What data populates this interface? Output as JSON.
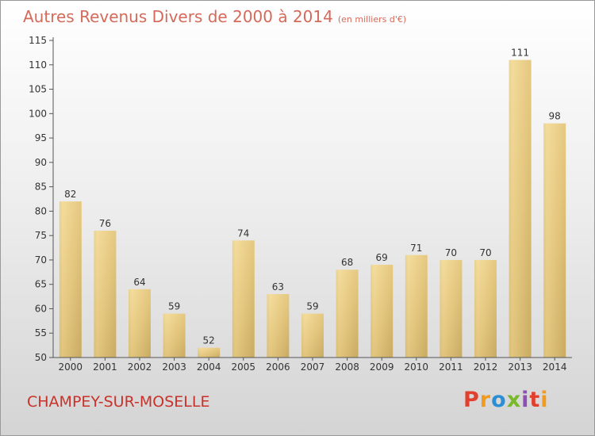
{
  "chart_data": {
    "type": "bar",
    "title": "Autres Revenus Divers de 2000 à 2014",
    "subtitle": "(en milliers d'€)",
    "categories": [
      "2000",
      "2001",
      "2002",
      "2003",
      "2004",
      "2005",
      "2006",
      "2007",
      "2008",
      "2009",
      "2010",
      "2011",
      "2012",
      "2013",
      "2014"
    ],
    "values": [
      82,
      76,
      64,
      59,
      52,
      74,
      63,
      59,
      68,
      69,
      71,
      70,
      70,
      111,
      98
    ],
    "ylim": [
      50,
      115
    ],
    "yticks": [
      50,
      55,
      60,
      65,
      70,
      75,
      80,
      85,
      90,
      95,
      100,
      105,
      110,
      115
    ],
    "xlabel": "",
    "ylabel": "",
    "grid": false,
    "bar_color": "#e8cc85"
  },
  "footer": {
    "location": "CHAMPEY-SUR-MOSELLE",
    "brand": "Proxiti",
    "brand_colors": [
      "#e2402f",
      "#f29a1d",
      "#2b8fd6",
      "#79b72b",
      "#8e4fb5",
      "#e2402f",
      "#f29a1d"
    ]
  }
}
